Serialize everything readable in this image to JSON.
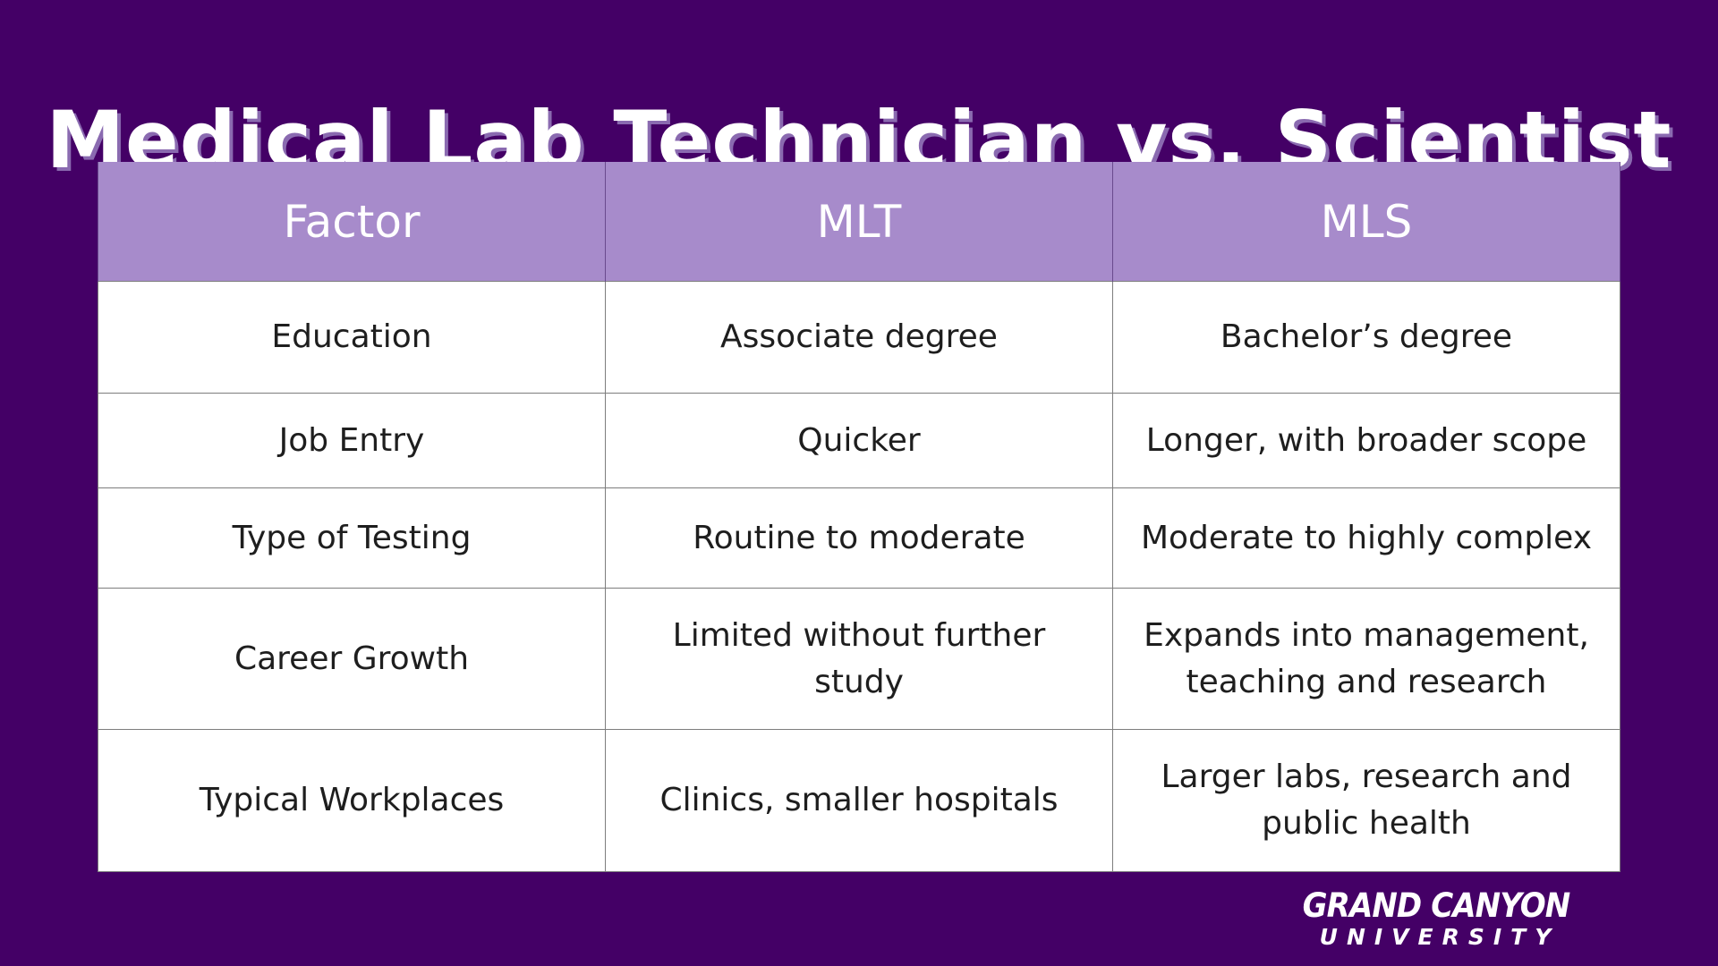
{
  "title": "Medical Lab Technician vs. Scientist",
  "table": {
    "headers": [
      "Factor",
      "MLT",
      "MLS"
    ],
    "rows": [
      [
        "Education",
        "Associate degree",
        "Bachelor’s degree"
      ],
      [
        "Job Entry",
        "Quicker",
        "Longer, with broader scope"
      ],
      [
        "Type of Testing",
        "Routine to moderate",
        "Moderate to highly complex"
      ],
      [
        "Career Growth",
        "Limited without further study",
        "Expands into management, teaching and research"
      ],
      [
        "Typical Workplaces",
        "Clinics, smaller hospitals",
        "Larger labs, research and public health"
      ]
    ]
  },
  "logo": {
    "line1": "GRAND CANYON",
    "line2": "UNIVERSITY"
  },
  "colors": {
    "background": "#440066",
    "header_fill": "#a78bcb",
    "cell_fill": "#ffffff",
    "text_dark": "#1e1e1e"
  }
}
